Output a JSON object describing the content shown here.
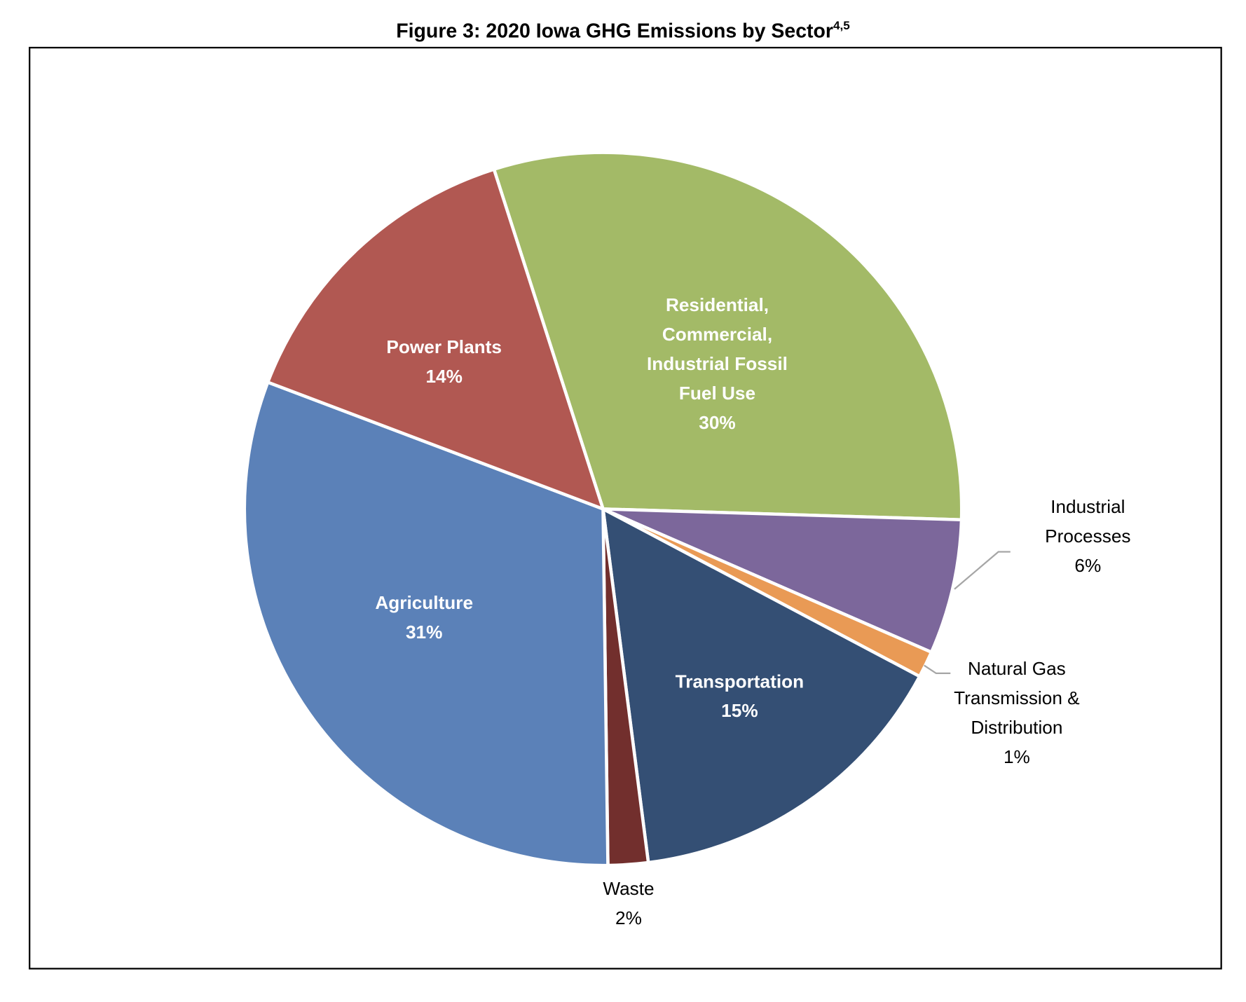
{
  "chart_data": {
    "type": "pie",
    "title": "Figure 3:  2020 Iowa GHG Emissions by Sector",
    "title_superscript": "4,5",
    "start_angle_deg": -17.7,
    "direction": "clockwise",
    "slices": [
      {
        "name": "Residential, Commercial, Industrial Fossil Fuel Use",
        "label_lines": [
          "Residential,",
          "Commercial,",
          "Industrial Fossil",
          "Fuel Use"
        ],
        "pct_label": "30%",
        "value": 30.4,
        "color": "#A3BA67",
        "label_inside": true
      },
      {
        "name": "Industrial Processes",
        "label_lines": [
          "Industrial",
          "Processes"
        ],
        "pct_label": "6%",
        "value": 6.1,
        "color": "#7C679B",
        "label_inside": false
      },
      {
        "name": "Natural Gas Transmission & Distribution",
        "label_lines": [
          "Natural Gas",
          "Transmission &",
          "Distribution"
        ],
        "pct_label": "1%",
        "value": 1.2,
        "color": "#E99A55",
        "label_inside": false
      },
      {
        "name": "Transportation",
        "label_lines": [
          "Transportation"
        ],
        "pct_label": "15%",
        "value": 15.2,
        "color": "#344F74",
        "label_inside": true
      },
      {
        "name": "Waste",
        "label_lines": [
          "Waste"
        ],
        "pct_label": "2%",
        "value": 1.8,
        "color": "#722F2D",
        "label_inside": false
      },
      {
        "name": "Agriculture",
        "label_lines": [
          "Agriculture"
        ],
        "pct_label": "31%",
        "value": 31.0,
        "color": "#5B81B8",
        "label_inside": true
      },
      {
        "name": "Power Plants",
        "label_lines": [
          "Power Plants"
        ],
        "pct_label": "14%",
        "value": 14.3,
        "color": "#B15852",
        "label_inside": true
      }
    ]
  }
}
